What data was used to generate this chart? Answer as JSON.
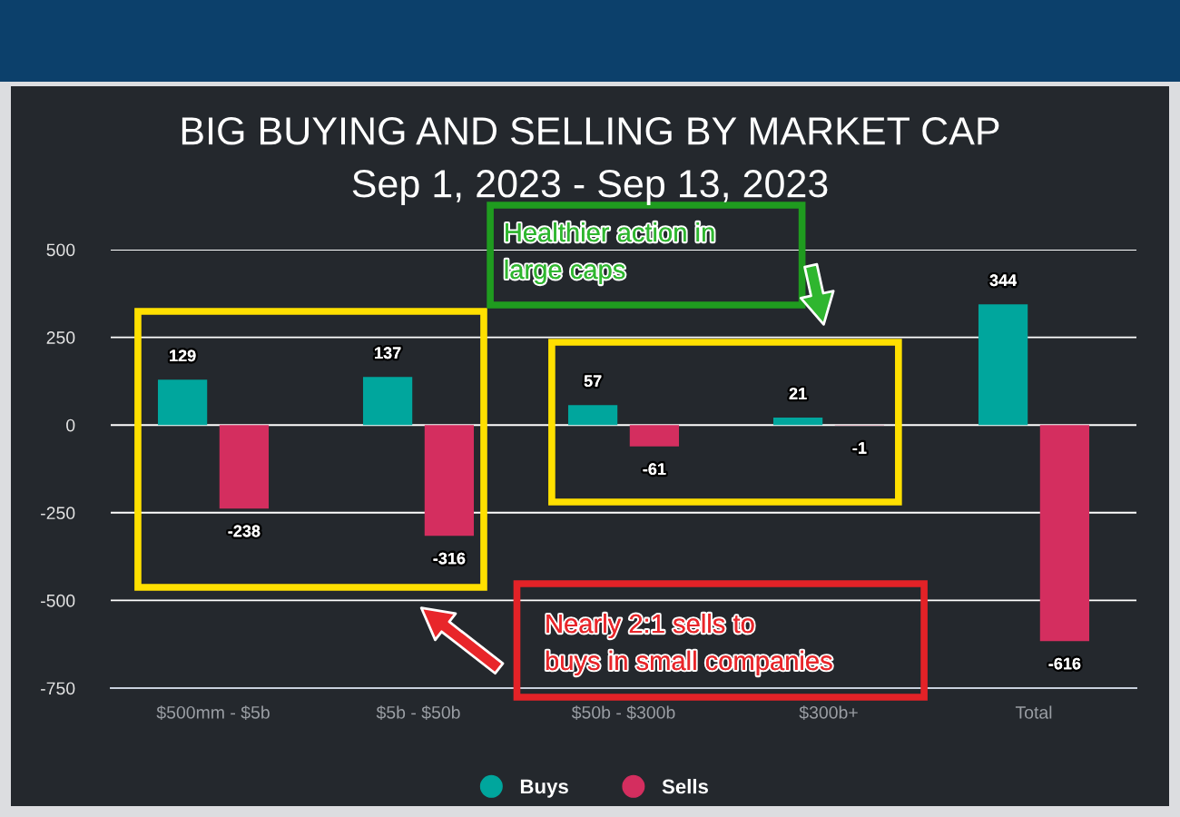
{
  "chart_data": {
    "type": "bar",
    "title": "BIG BUYING AND SELLING BY MARKET CAP",
    "subtitle": "Sep 1, 2023 - Sep 13, 2023",
    "categories": [
      "$500mm - $5b",
      "$5b - $50b",
      "$50b - $300b",
      "$300b+",
      "Total"
    ],
    "series": [
      {
        "name": "Buys",
        "color": "#00a69d",
        "values": [
          129,
          137,
          57,
          21,
          344
        ]
      },
      {
        "name": "Sells",
        "color": "#d42e5f",
        "values": [
          -238,
          -316,
          -61,
          -1,
          -616
        ]
      }
    ],
    "ylim": [
      -750,
      500
    ],
    "yticks": [
      -750,
      -500,
      -250,
      0,
      250,
      500
    ],
    "grid": "y",
    "legend": "bottom",
    "data_labels": true,
    "annotations": [
      "Healthier action in\nlarge caps",
      "Nearly 2:1 sells to\nbuys in small companies"
    ]
  }
}
